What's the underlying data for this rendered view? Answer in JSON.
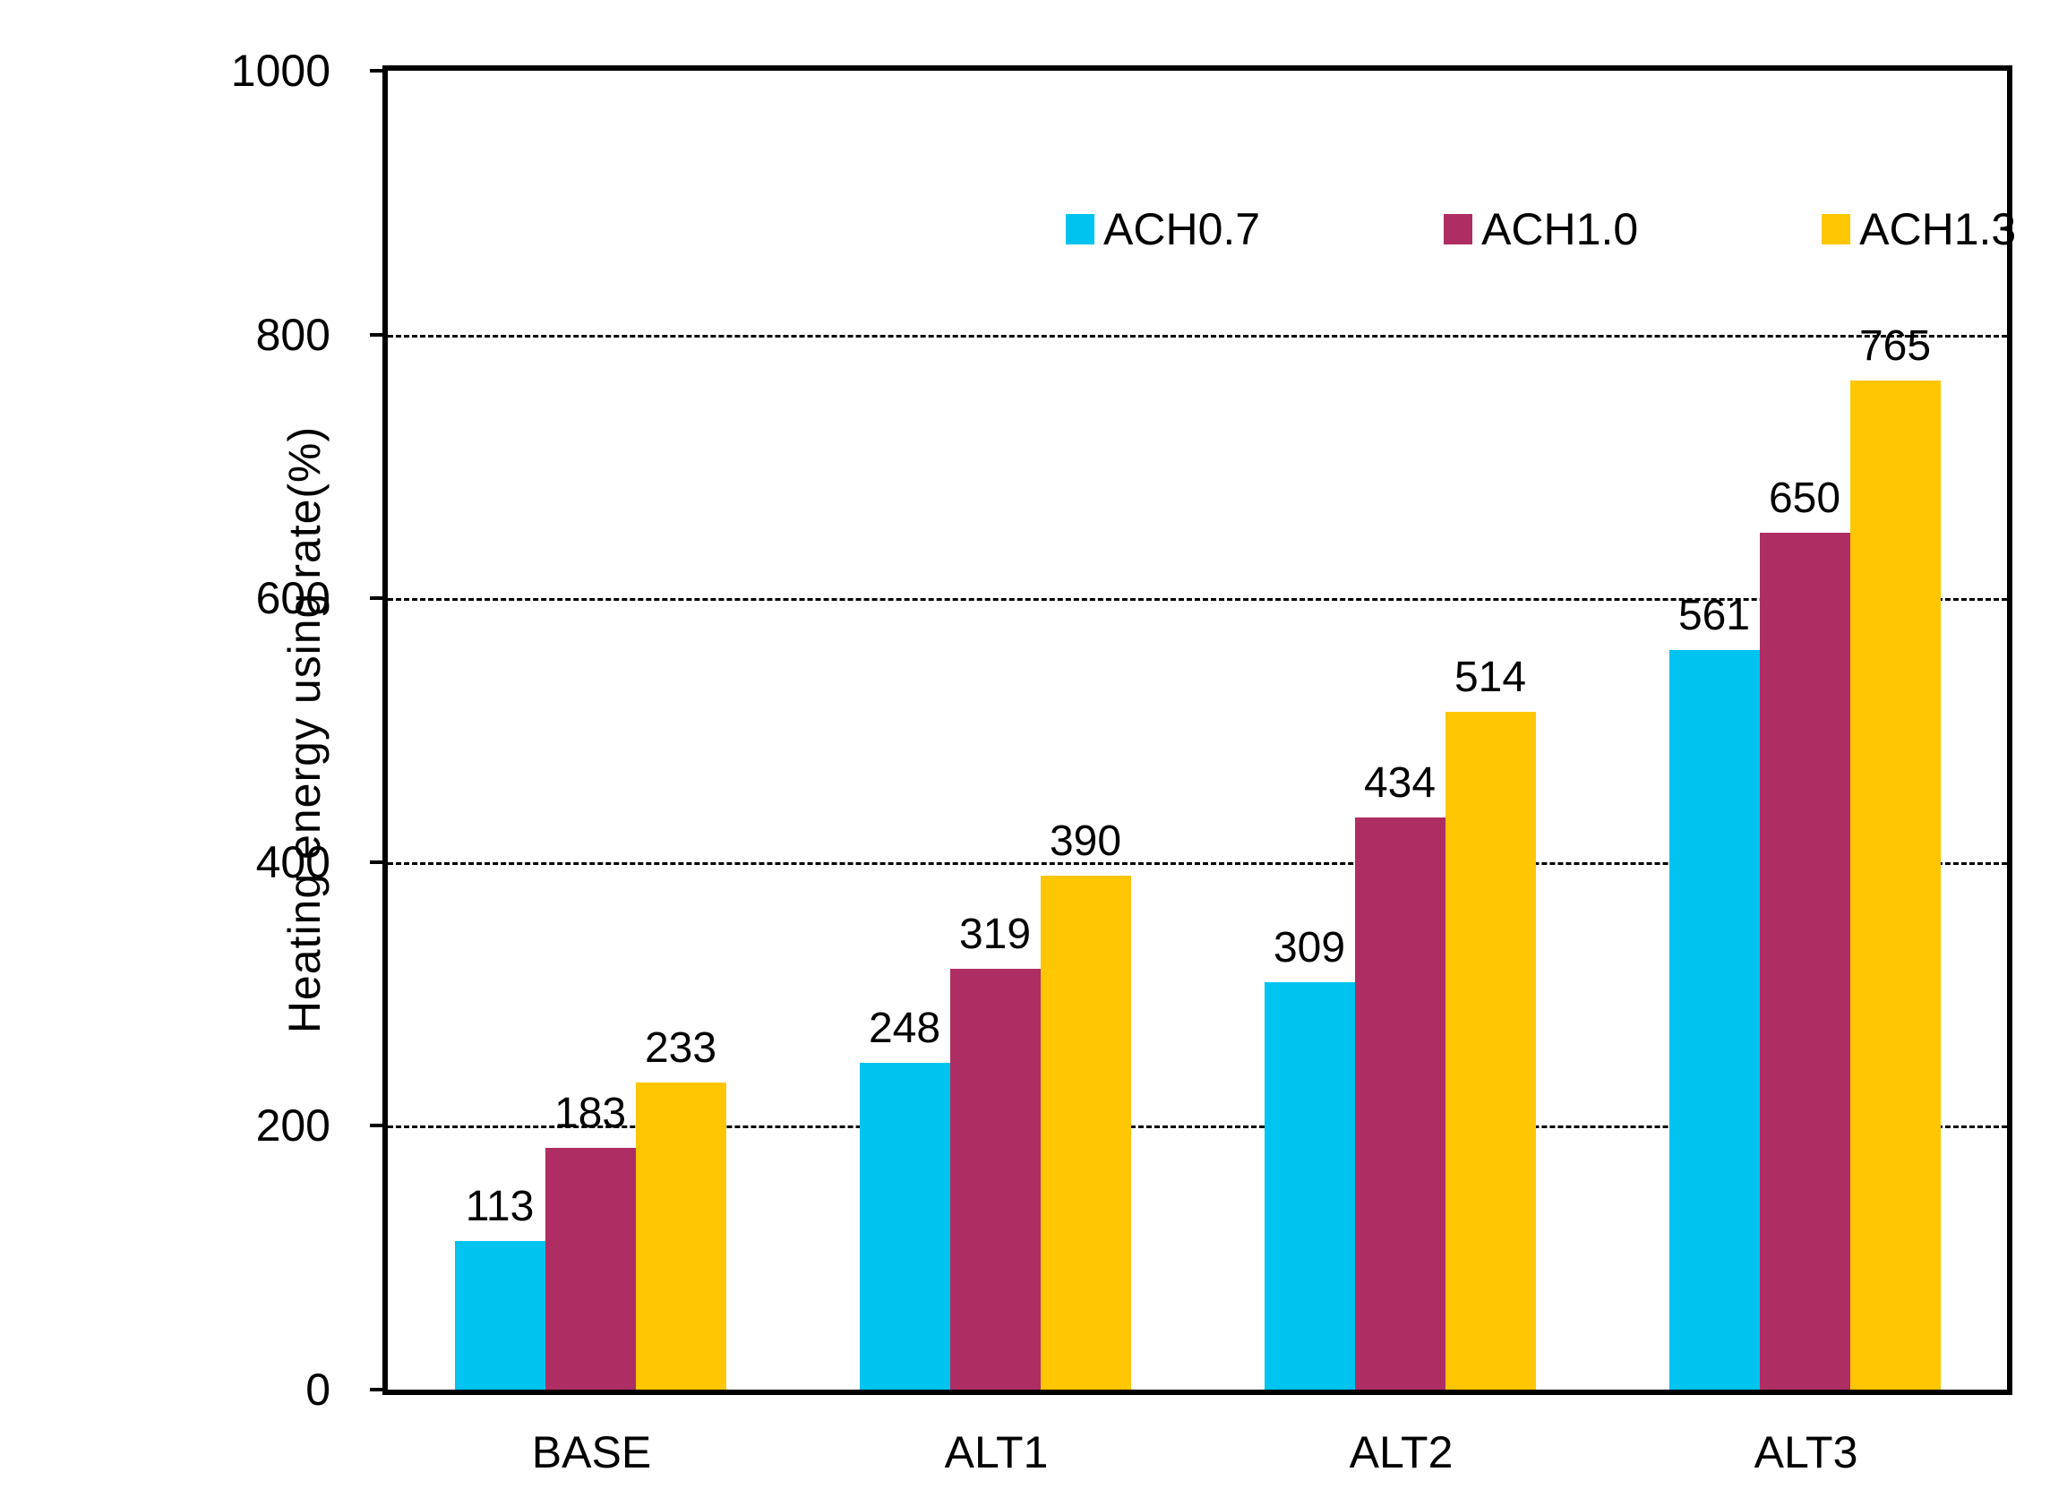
{
  "chart_data": {
    "type": "bar",
    "title": "",
    "xlabel": "",
    "ylabel": "Heating energy using rate(%)",
    "categories": [
      "BASE",
      "ALT1",
      "ALT2",
      "ALT3"
    ],
    "series": [
      {
        "name": "ACH0.7",
        "color": "#00C3F0",
        "values": [
          113,
          248,
          309,
          561
        ]
      },
      {
        "name": "ACH1.0",
        "color": "#AE2E64",
        "values": [
          183,
          319,
          434,
          650
        ]
      },
      {
        "name": "ACH1.3",
        "color": "#FFC603",
        "values": [
          233,
          390,
          514,
          765
        ]
      }
    ],
    "ylim": [
      0,
      1000
    ],
    "yticks": [
      0,
      200,
      400,
      600,
      800,
      1000
    ],
    "grid": "horizontal dashed gridlines at 200, 400, 600, 800",
    "legend_position": "top-inside-horizontal",
    "value_labels": true,
    "plot_border": "black box around plot area"
  }
}
